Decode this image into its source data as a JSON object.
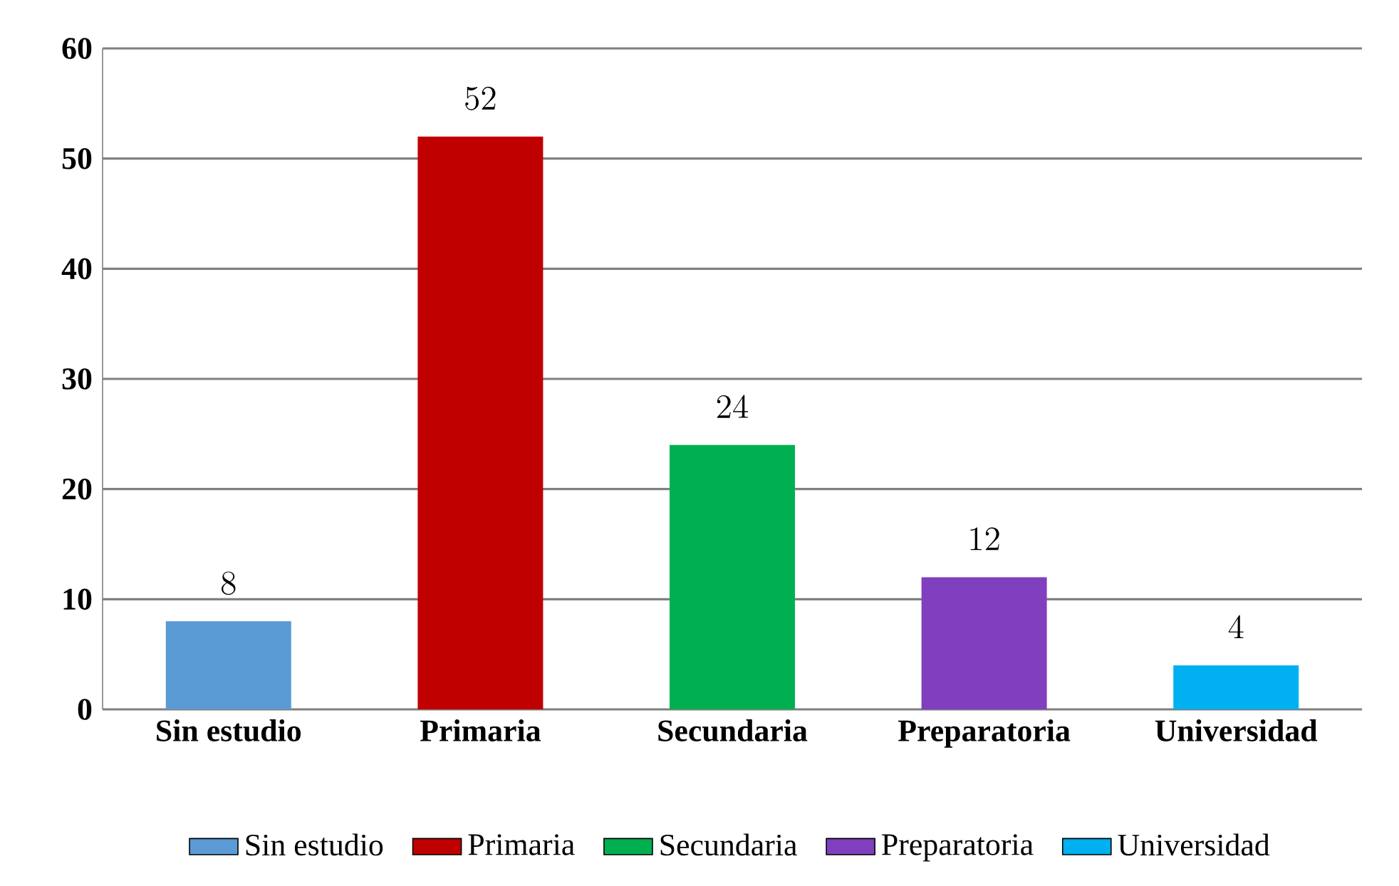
{
  "chart_data": {
    "type": "bar",
    "categories": [
      "Sin estudio",
      "Primaria",
      "Secundaria",
      "Preparatoria",
      "Universidad"
    ],
    "series": [
      {
        "name": "Sin estudio",
        "color": "#5b9bd5",
        "values": [
          8,
          null,
          null,
          null,
          null
        ]
      },
      {
        "name": "Primaria",
        "color": "#c00000",
        "values": [
          null,
          52,
          null,
          null,
          null
        ]
      },
      {
        "name": "Secundaria",
        "color": "#00b050",
        "values": [
          null,
          null,
          24,
          null,
          null
        ]
      },
      {
        "name": "Preparatoria",
        "color": "#7f3fbf",
        "values": [
          null,
          null,
          null,
          12,
          null
        ]
      },
      {
        "name": "Universidad",
        "color": "#00b0f0",
        "values": [
          null,
          null,
          null,
          null,
          4
        ]
      }
    ],
    "ylim": [
      0,
      60
    ],
    "yticks": [
      0,
      10,
      20,
      30,
      40,
      50,
      60
    ],
    "grid": "y",
    "legend": "bottom",
    "data_labels": true
  }
}
